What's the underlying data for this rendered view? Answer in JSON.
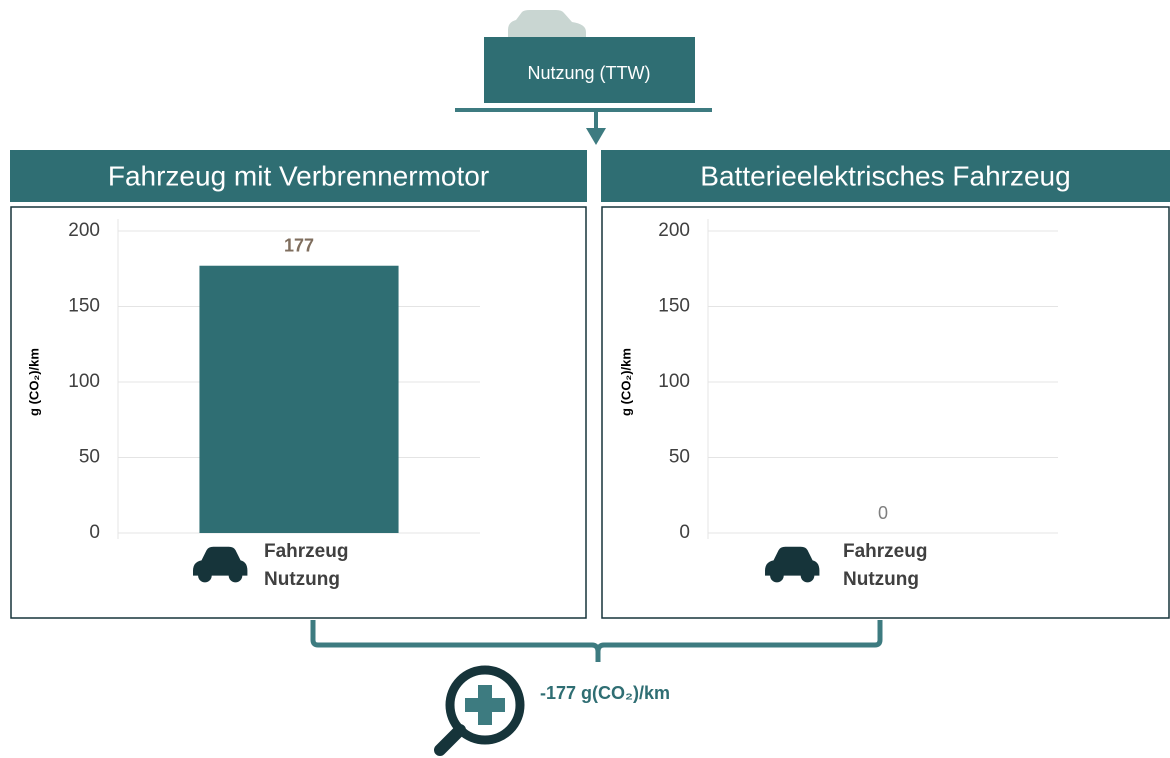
{
  "header": {
    "label": "Nutzung (TTW)"
  },
  "summary": "-177 g(CO₂)/km",
  "chart_data": [
    {
      "type": "bar",
      "title": "Fahrzeug mit Verbrennermotor",
      "ylabel": "g (CO₂)/km",
      "categories": [
        "Fahrzeug Nutzung"
      ],
      "values": [
        177
      ],
      "color": "#2f6e73",
      "ylim": [
        0,
        200
      ],
      "yticks": [
        0,
        50,
        100,
        150,
        200
      ],
      "grid": true
    },
    {
      "type": "bar",
      "title": "Batterieelektrisches Fahrzeug",
      "ylabel": "g (CO₂)/km",
      "categories": [
        "Fahrzeug Nutzung"
      ],
      "values": [
        0
      ],
      "color": "#2f6e73",
      "ylim": [
        0,
        200
      ],
      "yticks": [
        0,
        50,
        100,
        150,
        200
      ],
      "grid": true
    }
  ]
}
